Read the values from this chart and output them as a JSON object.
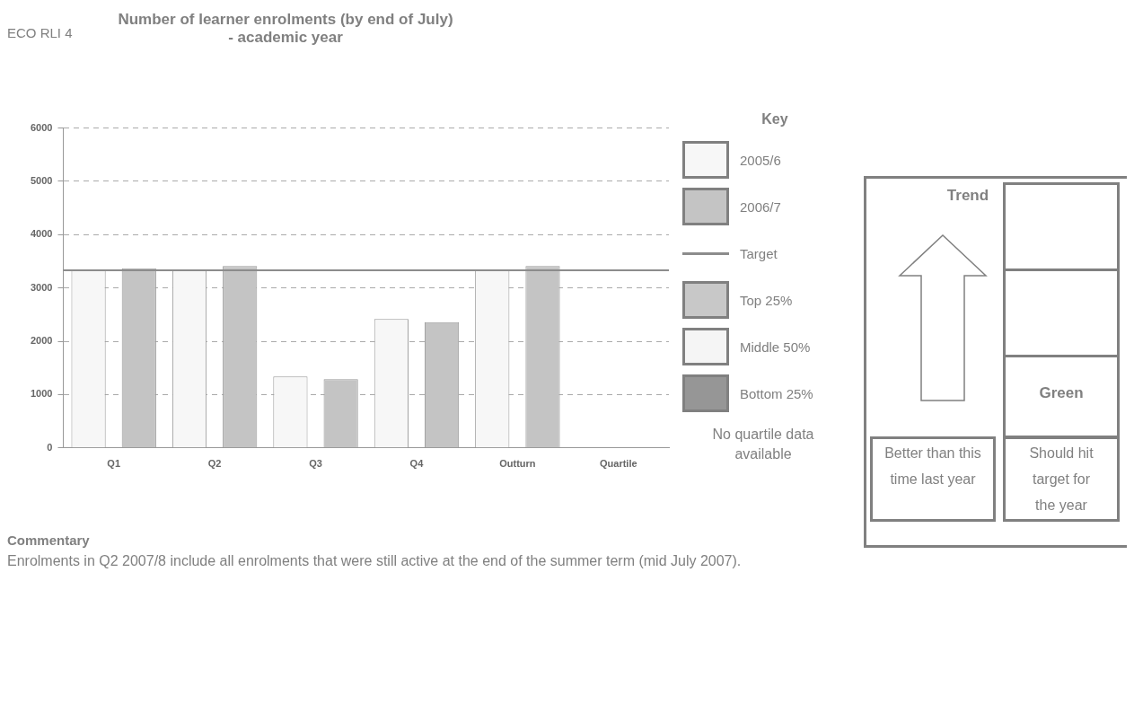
{
  "chart_data": {
    "type": "bar",
    "title": "Number of learner enrolments (by end of July) - academic year",
    "legend_title": "Key",
    "categories": [
      "Q1",
      "Q2",
      "Q3",
      "Q4",
      "Outturn",
      "Quartile"
    ],
    "series": [
      {
        "name": "2005/6",
        "color": "#f7f7f7",
        "values": [
          3340,
          3350,
          1340,
          2420,
          3350,
          null
        ]
      },
      {
        "name": "2006/7",
        "color": "#c4c4c4",
        "values": [
          3370,
          3410,
          1290,
          2360,
          3410,
          null
        ]
      },
      {
        "name": "Top 25%",
        "color": "#c8c8c8",
        "values": [
          null,
          null,
          null,
          null,
          null,
          null
        ]
      },
      {
        "name": "Middle 50%",
        "color": "#f5f5f5",
        "values": [
          null,
          null,
          null,
          null,
          null,
          null
        ]
      },
      {
        "name": "Bottom 25%",
        "color": "#969696",
        "values": [
          null,
          null,
          null,
          null,
          null,
          null
        ]
      }
    ],
    "ref_lines": [
      {
        "axis": "y",
        "value": 3330,
        "label": "Target",
        "color": "#8c8c8c"
      }
    ],
    "ylim": [
      0,
      6000
    ],
    "yticks": [
      0,
      1000,
      2000,
      3000,
      4000,
      5000,
      6000
    ],
    "grid": "y",
    "legend": "right",
    "annotations": [
      "ECO RLI 4",
      "No quartile data available",
      "Trend",
      "Green",
      "Better than this time last year",
      "Should hit target for the year",
      "Commentary",
      "Enrolments in Q2 2007/8 include all enrolments that were still active at the end of the summer term (mid July 2007)."
    ]
  }
}
